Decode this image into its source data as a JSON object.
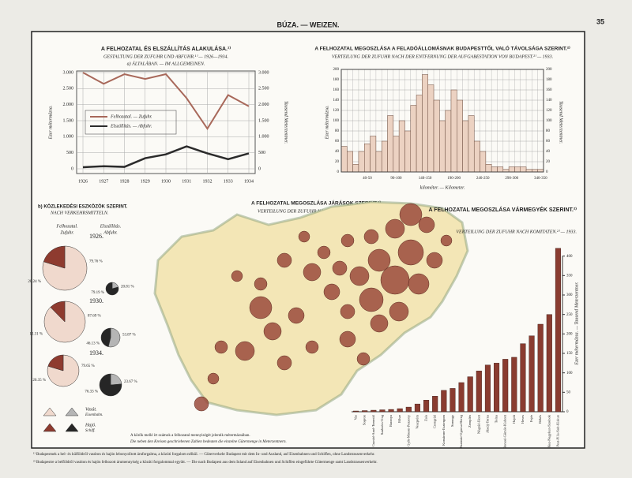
{
  "header": {
    "title": "BÚZA. — WEIZEN.",
    "page": "35"
  },
  "chart_data": [
    {
      "type": "line",
      "title": "A FELHOZATAL ÉS ELSZÁLLÍTÁS ALAKULÁSA.¹⁾",
      "subtitle": "GESTALTUNG DER ZUFUHR UND ABFUHR.¹⁾ — 1926—1934.",
      "section": "a) ÁLTALÁBAN. — IM ALLGEMEINEN.",
      "ylabel": "Ezer métermázsa.",
      "y2label": "Tausend Meterzentner.",
      "x": [
        1926,
        1927,
        1928,
        1929,
        1930,
        1931,
        1932,
        1933,
        1934
      ],
      "xlim": [
        1926,
        1934
      ],
      "series": [
        {
          "name": "Felhozatal. — Zufuhr.",
          "color": "#a8685a",
          "values": [
            3000,
            2650,
            2950,
            2800,
            2950,
            2200,
            1250,
            2300,
            1950
          ]
        },
        {
          "name": "Elszállítás. — Abfuhr.",
          "color": "#2b2b2b",
          "values": [
            50,
            80,
            60,
            330,
            450,
            700,
            480,
            300,
            480
          ]
        }
      ],
      "ylim": [
        0,
        3000
      ],
      "yticks": [
        0,
        {
          "value": 500,
          "label": "500"
        },
        {
          "value": 1000,
          "label": "1.000"
        },
        {
          "value": 1500,
          "label": "1.500"
        },
        {
          "value": 2000,
          "label": "2.000"
        },
        {
          "value": 2500,
          "label": "2.500"
        },
        {
          "value": 3000,
          "label": "3.000"
        }
      ],
      "grid": true
    },
    {
      "type": "histogram",
      "title": "A FELHOZATAL MEGOSZLÁSA A FELADÓÁLLOMÁSNAK BUDAPESTTŐL VALÓ TÁVOLSÁGA SZERINT.²⁾",
      "subtitle": "VERTEILUNG DER ZUFUHR NACH DER ENTFERNUNG DER AUFGABESTATION VON BUDAPEST.²⁾ — 1933.",
      "xlabel": "kilométer. — Kilometer.",
      "ylabel": "Ezer métermázsa.",
      "y2label": "Tausend Meterzentner.",
      "color": "#ecd2c2",
      "bins": [
        0,
        10,
        20,
        30,
        40,
        50,
        60,
        70,
        80,
        90,
        100,
        110,
        120,
        130,
        140,
        150,
        160,
        170,
        180,
        190,
        200,
        210,
        220,
        230,
        240,
        250,
        260,
        270,
        280,
        290,
        300,
        310,
        320,
        330,
        340,
        350
      ],
      "values": [
        50,
        40,
        15,
        40,
        55,
        70,
        40,
        60,
        110,
        70,
        100,
        80,
        130,
        150,
        190,
        170,
        140,
        100,
        120,
        160,
        140,
        100,
        110,
        60,
        40,
        15,
        10,
        10,
        5,
        10,
        10,
        10,
        5,
        5,
        5
      ],
      "xlim": [
        0,
        350
      ],
      "xticks": [
        {
          "value": 45,
          "label": "40-50"
        },
        {
          "value": 95,
          "label": "90-100"
        },
        {
          "value": 145,
          "label": "140-150"
        },
        {
          "value": 195,
          "label": "190-200"
        },
        {
          "value": 245,
          "label": "240-250"
        },
        {
          "value": 295,
          "label": "290-300"
        },
        {
          "value": 345,
          "label": "340-350"
        }
      ],
      "ylim": [
        0,
        200
      ],
      "yticks": [
        0,
        20,
        40,
        60,
        80,
        100,
        120,
        140,
        160,
        180,
        200
      ],
      "grid": true
    },
    {
      "type": "pie-group",
      "title": "b) KÖZLEKEDÉSI ESZKÖZÖK SZERINT.",
      "subtitle": "NACH VERKEHRSMITTELN.",
      "columns": [
        "Felhozatal.",
        "Elszállítás."
      ],
      "columns_de": [
        "Zufuhr.",
        "Abfuhr."
      ],
      "legend": [
        {
          "name": "Vasút.",
          "name_de": "Eisenbahn."
        },
        {
          "name": "Hajó.",
          "name_de": "Schiff."
        }
      ],
      "colors": [
        [
          "#f0d9cd",
          "#8e3b2f"
        ],
        [
          "#b5b5b5",
          "#262626"
        ]
      ],
      "pies": [
        {
          "year": "1926.",
          "zufuhr": {
            "values": [
              79.76,
              20.24
            ],
            "value_labels": [
              "79.76 %",
              "20.24 %"
            ]
          },
          "abfuhr": {
            "values": [
              20.81,
              79.19
            ],
            "value_labels": [
              "20.81 %",
              "79.19 %"
            ]
          }
        },
        {
          "year": "1930.",
          "zufuhr": {
            "values": [
              87.69,
              12.31
            ],
            "value_labels": [
              "87.69 %",
              "12.31 %"
            ]
          },
          "abfuhr": {
            "values": [
              53.87,
              46.13
            ],
            "value_labels": [
              "53.87 %",
              "46.13 %"
            ]
          }
        },
        {
          "year": "1934.",
          "zufuhr": {
            "values": [
              79.65,
              20.35
            ],
            "value_labels": [
              "79.65 %",
              "20.35 %"
            ]
          },
          "abfuhr": {
            "values": [
              23.67,
              76.33
            ],
            "value_labels": [
              "23.67 %",
              "76.33 %"
            ]
          }
        }
      ]
    },
    {
      "type": "bubble-map",
      "title": "A FELHOZATAL MEGOSZLÁSA JÁRÁSOK SZERINT.²⁾",
      "subtitle": "VERTEILUNG DER ZUFUHR NACH BEZIRKEN.²⁾ — 1933.",
      "note": "A körök mellé írt számok a felhozatal mennyiségét jelentik métermázsában.",
      "note_de": "Die neben den Kreisen geschriebenen Zahlen bedeuten die einzelne Gütermenge in Meterzentnern.",
      "color": "#9a4a3c"
    },
    {
      "type": "bar",
      "title": "A FELHOZATAL MEGOSZLÁSA VÁRMEGYÉK SZERINT.²⁾",
      "subtitle": "VERTEILUNG DER ZUFUHR NACH KOMITATEN.²⁾ — 1933.",
      "ylabel": "Ezer métermázsa. — Tausend Meterzentner.",
      "color": "#8a3c30",
      "categories": [
        "Vas",
        "Sopron",
        "Csanád-Arad-Torontál",
        "Szabolcs-Ung",
        "Baranya",
        "Bihar",
        "Győr-Moson-Pozsony",
        "Veszprém",
        "Zala",
        "Csongrád",
        "Komárom-Esztergom",
        "Somogy",
        "Szatmár-Ugocsa-Bereg",
        "Zemplén",
        "Nógrád-Hont",
        "Abaúj-Torna",
        "Tolna",
        "Borsod-Gömör-Kishont",
        "Hajdú",
        "Heves",
        "Fejér",
        "Békés",
        "Jász-Nagykun-Szolnok",
        "Pest-Pilis-Solt-Kiskun"
      ],
      "values": [
        2,
        3,
        4,
        5,
        6,
        8,
        12,
        20,
        30,
        40,
        55,
        60,
        75,
        90,
        105,
        120,
        125,
        135,
        140,
        175,
        195,
        225,
        250,
        420
      ],
      "ylim": [
        0,
        450
      ],
      "yticks": [
        0,
        50,
        100,
        150,
        200,
        250,
        300,
        350,
        400
      ]
    }
  ],
  "footnotes": [
    "¹⁾ Budapestnek a bel- és külföldről vasúton és hajón lebonyolított áruforgalma, a közúti forgalom nélkül. — Güterverkehr Budapest mit dem In- und Ausland, auf Eisenbahnen und Schiffen, ohne Landstrassenverkehr.",
    "²⁾ Budapestre a belföldről vasúton és hajón felhozott árumennyiség a közúti forgalommal együtt. — Die nach Budapest aus dem Inland auf Eisenbahnen und Schiffen eingeführte Gütermenge samt Landstrassenverkehr."
  ]
}
